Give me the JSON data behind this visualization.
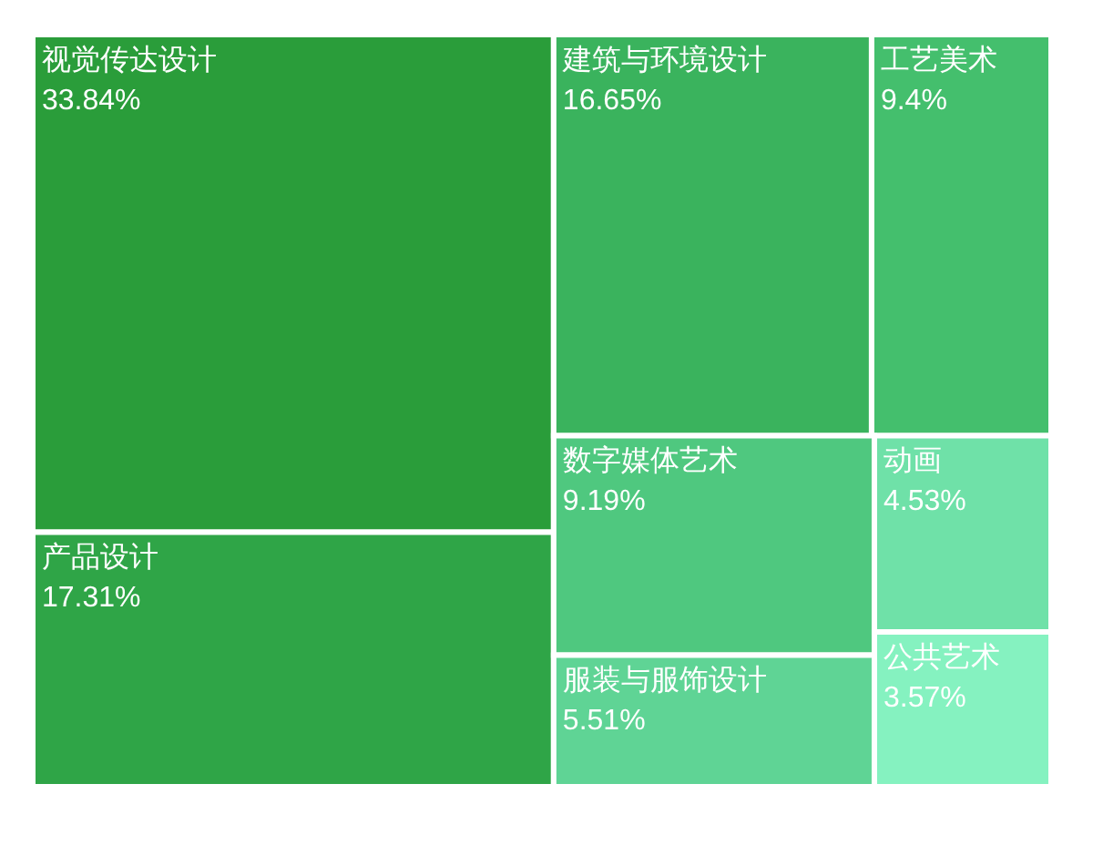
{
  "chart_data": {
    "type": "other",
    "categories": [
      "视觉传达设计",
      "产品设计",
      "建筑与环境设计",
      "工艺美术",
      "数字媒体艺术",
      "服装与服饰设计",
      "动画",
      "公共艺术"
    ],
    "values": [
      33.84,
      17.31,
      16.65,
      9.4,
      9.19,
      5.51,
      4.53,
      3.57
    ],
    "value_labels": [
      "33.84%",
      "17.31%",
      "16.65%",
      "9.4%",
      "9.19%",
      "5.51%",
      "4.53%",
      "3.57%"
    ],
    "colors": [
      "#2a9d3a",
      "#2fa547",
      "#3ab35d",
      "#44bf6d",
      "#4fc87f",
      "#5fd495",
      "#6fe1a8",
      "#85f2c0"
    ]
  }
}
